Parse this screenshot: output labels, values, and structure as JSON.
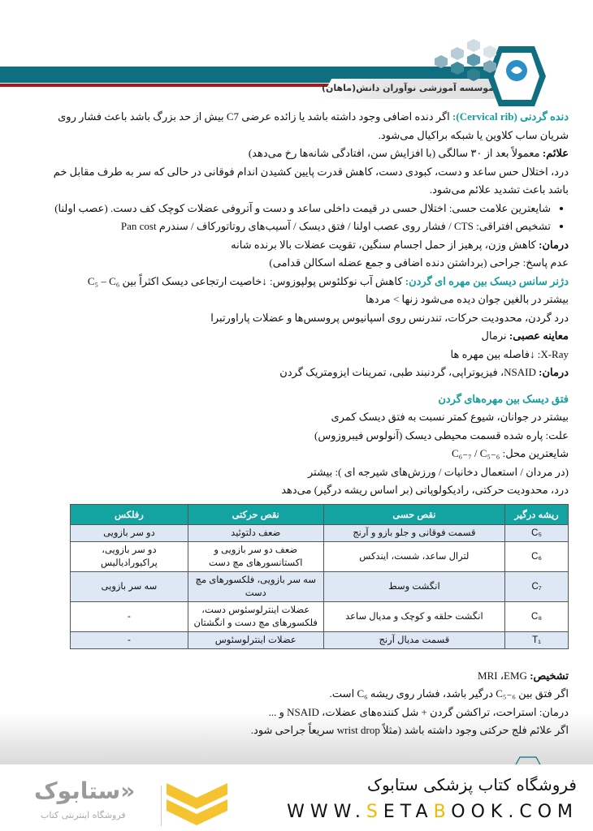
{
  "header": {
    "institute": "موسسه آموزشی نوآوران دانش(ماهان)",
    "logo_text": "نوآوران دانش (ماهان)",
    "colors": {
      "band": "#0f6f80",
      "red": "#a8181c",
      "accent": "#159e9a"
    }
  },
  "s1": {
    "title": "دنده گردنی (Cervical rib):",
    "intro": " اگر دنده اضافی وجود داشته باشد یا زائده عرضی C7 بیش از حد بزرگ باشد باعث فشار روی",
    "intro2": "شریان ساب کلاوین یا شبکه براکیال می‌شود.",
    "sym_label": "علائم:",
    "sym": " معمولاً بعد از ۳۰ سالگی (با افزایش سن، افتادگی شانه‌ها رخ می‌دهد)",
    "desc1": "درد، اختلال حس ساعد و دست، کبودی دست، کاهش قدرت پایین کشیدن اندام فوقانی در حالی که سر به طرف مقابل خم",
    "desc2": "باشد باعث تشدید علائم می‌شود.",
    "bullets": [
      "شایعترین علامت حسی: اختلال حسی در قیمت داخلی ساعد و دست و آتروفی عضلات کوچک کف دست. (عصب اولنا)",
      "تشخیص افتراقی: CTS / فشار روی عصب اولنا / فتق دیسک / آسیب‌های روتاتورکاف / سندرم Pan cost"
    ],
    "tx_label": "درمان:",
    "tx": " کاهش وزن، پرهیز از حمل اجسام سنگین، تقویت عضلات بالا برنده شانه",
    "nr": "عدم پاسخ: جراحی (برداشتن دنده اضافی و جمع عضله اسکالن قدامی)"
  },
  "s2": {
    "title": "دژنر سانس دیسک بین مهره ای گردن:",
    "intro": " کاهش آب نوکلئوس پولپوزوس: ↓خاصیت ارتجاعی دیسک اکثراً بین C₅ – C₆",
    "l2": "بیشتر در بالغین جوان دیده می‌شود زنها > مردها",
    "l3": "درد گردن، محدودیت حرکات، تندرنس روی اسپانیوس پروسس‌ها و عضلات پاراورتبرا",
    "neuro_label": "معاینه عصبی:",
    "neuro": " نرمال",
    "xray": "X-Ray: ↓فاصله بین مهره ها",
    "tx_label": "درمان:",
    "tx": " NSAID، فیزیوتراپی، گردنبند طبی، تمرینات ایزومتریک گردن"
  },
  "s3": {
    "title": "فتق دیسک بین مهره‌های گردن",
    "l1": "بیشتر در جوانان، شیوع کمتر نسبت به فتق دیسک کمری",
    "l2": "علت: پاره شده قسمت محیطی دیسک (آنولوس فیبروزوس)",
    "l3": "شایعترین محل: C₆₋₇ / C₅₋₆",
    "l4": "(در مردان / استعمال دخانیات / ورزش‌های شیرجه ای ): بیشتر",
    "l5": "درد، محدودیت حرکتی، رادیکولوپاتی (بر اساس ریشه درگیر) می‌دهد"
  },
  "table": {
    "headers": [
      "ریشه درگیر",
      "نقص حسی",
      "نقص حرکتی",
      "رفلکس"
    ],
    "rows": [
      [
        "C₅",
        "قسمت فوقانی و جلو بازو و آرنج",
        "ضعف دلتوئید",
        "دو سر بازویی"
      ],
      [
        "C₆",
        "لترال ساعد، شست، ایندکس",
        "ضعف دو سر بازویی و اکستانسورهای مچ دست",
        "دو سر بازویی، پراکیورادیالیس"
      ],
      [
        "C₇",
        "انگشت وسط",
        "سه سر بازویی، فلکسورهای مچ دست",
        "سه سر بازویی"
      ],
      [
        "C₈",
        "انگشت حلقه و کوچک و مدیال ساعد",
        "عضلات اینترلوسئوس دست، فلکسورهای مچ دست و انگشتان",
        "-"
      ],
      [
        "T₁",
        "قسمت مدیال آرنج",
        "عضلات اینترلوسئوس",
        "-"
      ]
    ]
  },
  "s4": {
    "dx_label": "تشخیص:",
    "dx": " MRI ،EMG",
    "l1": "اگر فتق بین C₅₋₆ درگیر باشد، فشار روی ریشه C₆ است.",
    "l2": "درمان: استراحت، تراکشن گردن + شل کننده‌های عضلات، NSAID و ...",
    "l3": "اگر علائم فلج حرکتی وجود داشته باشد (مثلاً wrist drop سریعاً جراحی شود."
  },
  "footer": {
    "shop": "فروشگاه کتاب پزشکی ستابوک",
    "url_a": "WWW.",
    "url_s": "S",
    "url_b": "ETA",
    "url_bb": "B",
    "url_c": "OOK.COM",
    "brand": "ستابوک",
    "brand_sub": "فروشگاه اینترنتی کتاب",
    "brand_color": "#f5b800"
  }
}
